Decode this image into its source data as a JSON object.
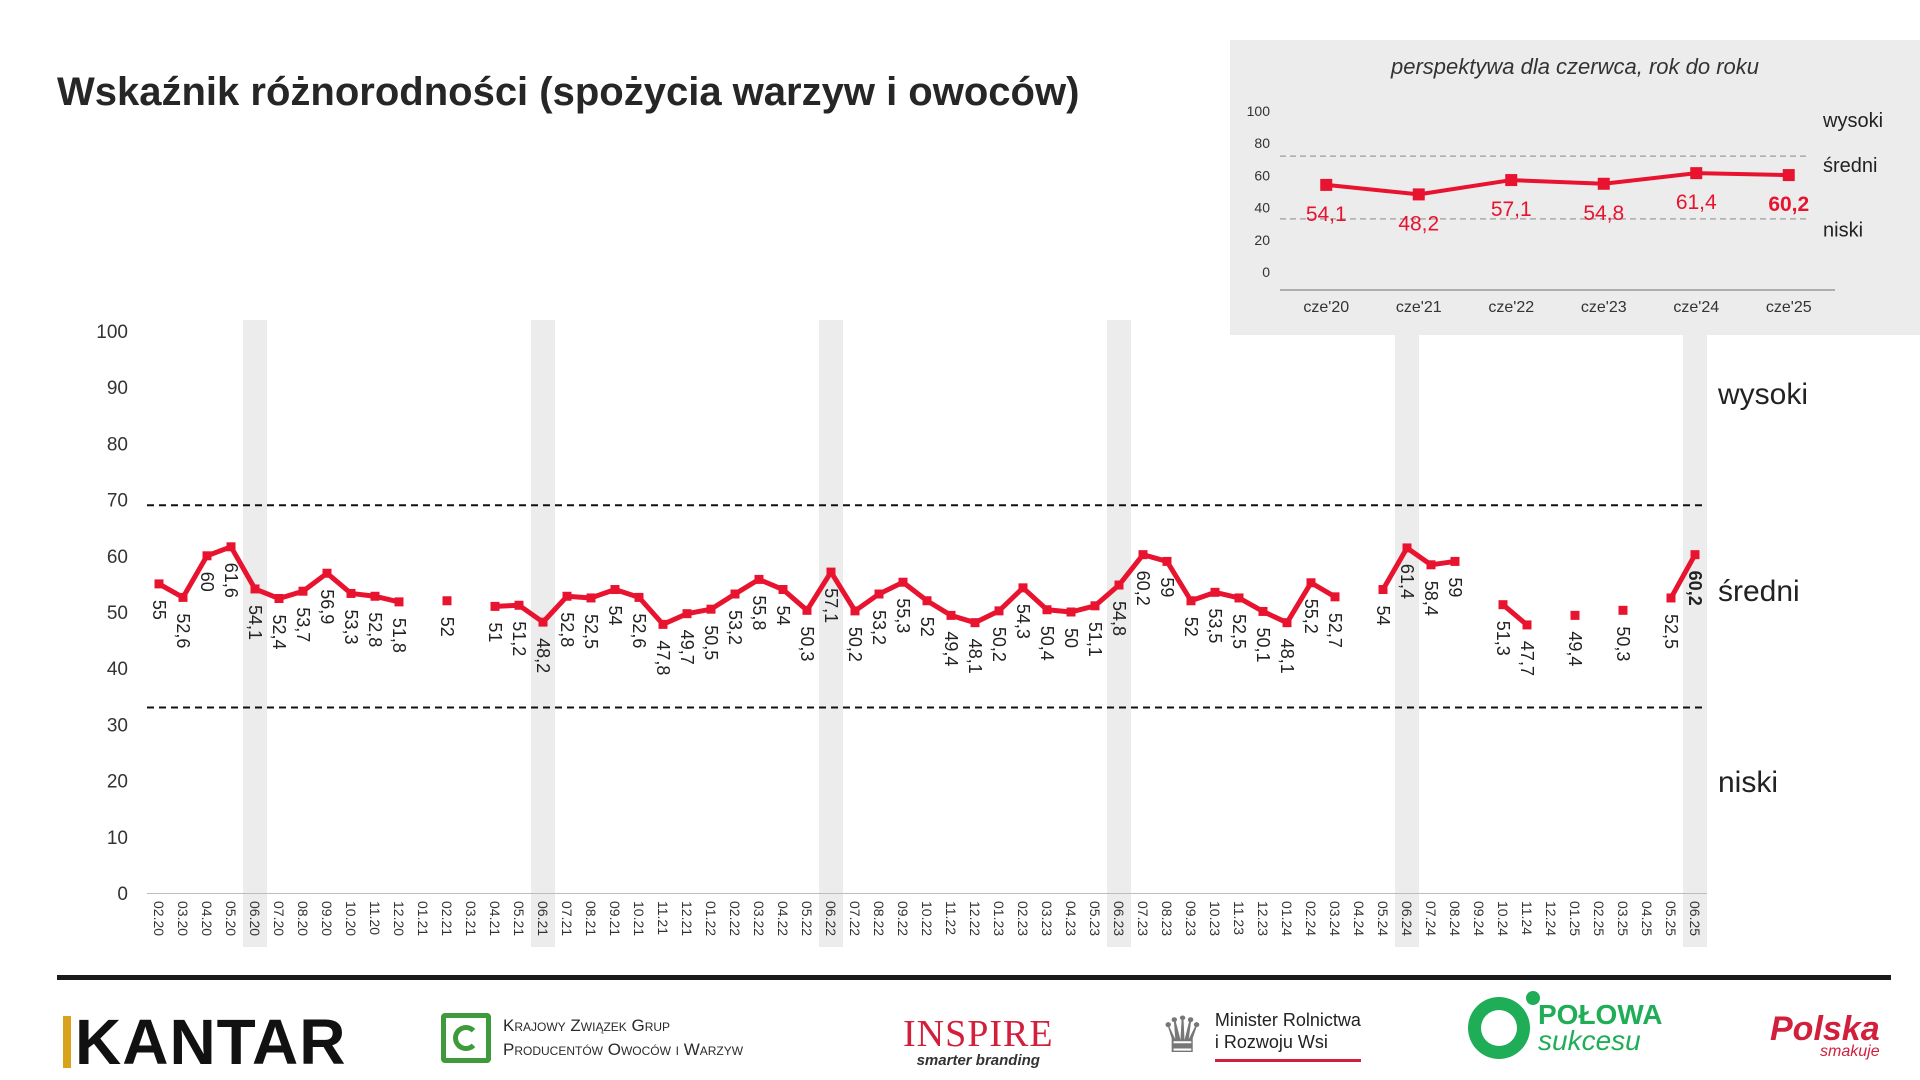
{
  "title": "Wskaźnik różnorodności (spożycia warzyw i owoców)",
  "chart_data": [
    {
      "type": "line",
      "title": "Wskaźnik różnorodności (spożycia warzyw i owoców)",
      "ylim": [
        0,
        100
      ],
      "yticks": [
        0,
        10,
        20,
        30,
        40,
        50,
        60,
        70,
        80,
        90,
        100
      ],
      "categories": [
        "02.20",
        "03.20",
        "04.20",
        "05.20",
        "06.20",
        "07.20",
        "08.20",
        "09.20",
        "10.20",
        "11.20",
        "12.20",
        "01.21",
        "02.21",
        "03.21",
        "04.21",
        "05.21",
        "06.21",
        "07.21",
        "08.21",
        "09.21",
        "10.21",
        "11.21",
        "12.21",
        "01.22",
        "02.22",
        "03.22",
        "04.22",
        "05.22",
        "06.22",
        "07.22",
        "08.22",
        "09.22",
        "10.22",
        "11.22",
        "12.22",
        "01.23",
        "02.23",
        "03.23",
        "04.23",
        "05.23",
        "06.23",
        "07.23",
        "08.23",
        "09.23",
        "10.23",
        "11.23",
        "12.23",
        "01.24",
        "02.24",
        "03.24",
        "04.24",
        "05.24",
        "06.24",
        "07.24",
        "08.24",
        "09.24",
        "10.24",
        "11.24",
        "12.24",
        "01.25",
        "02.25",
        "03.25",
        "04.25",
        "05.25",
        "06.25"
      ],
      "series": [
        {
          "values": [
            55,
            52.6,
            60,
            61.6,
            54.1,
            52.4,
            53.7,
            56.9,
            53.3,
            52.8,
            51.8,
            null,
            52,
            null,
            51,
            51.2,
            48.2,
            52.8,
            52.5,
            54,
            52.6,
            47.8,
            49.7,
            50.5,
            53.2,
            55.8,
            54,
            50.3,
            57.1,
            50.2,
            53.2,
            55.3,
            52,
            49.4,
            48.1,
            50.2,
            54.3,
            50.4,
            50,
            51.1,
            54.8,
            60.2,
            59,
            52,
            53.5,
            52.5,
            50.1,
            48.1,
            55.2,
            52.7,
            null,
            54,
            61.4,
            58.4,
            59,
            null,
            51.3,
            47.7,
            null,
            49.4,
            null,
            50.3,
            null,
            52.5,
            60.2
          ],
          "labels": [
            "55",
            "52,6",
            "60",
            "61,6",
            "54,1",
            "52,4",
            "53,7",
            "56,9",
            "53,3",
            "52,8",
            "51,8",
            "",
            "52",
            "",
            "51",
            "51,2",
            "48,2",
            "52,8",
            "52,5",
            "54",
            "52,6",
            "47,8",
            "49,7",
            "50,5",
            "53,2",
            "55,8",
            "54",
            "50,3",
            "57,1",
            "50,2",
            "53,2",
            "55,3",
            "52",
            "49,4",
            "48,1",
            "50,2",
            "54,3",
            "50,4",
            "50",
            "51,1",
            "54,8",
            "60,2",
            "59",
            "52",
            "53,5",
            "52,5",
            "50,1",
            "48,1",
            "55,2",
            "52,7",
            "",
            "54",
            "61,4",
            "58,4",
            "59",
            "",
            "51,3",
            "47,7",
            "",
            "49,4",
            "",
            "50,3",
            "",
            "52,5",
            "60,2"
          ],
          "color": "#e8132f"
        }
      ],
      "highlight_categories": [
        "06.20",
        "06.21",
        "06.22",
        "06.23",
        "06.24",
        "06.25"
      ],
      "reference_lines": [
        69,
        33
      ],
      "bands": [
        "wysoki",
        "średni",
        "niski"
      ],
      "grid": false
    },
    {
      "type": "line",
      "title": "perspektywa dla czerwca, rok do roku",
      "ylim": [
        0,
        100
      ],
      "yticks": [
        0,
        20,
        40,
        60,
        80,
        100
      ],
      "categories": [
        "cze'20",
        "cze'21",
        "cze'22",
        "cze'23",
        "cze'24",
        "cze'25"
      ],
      "series": [
        {
          "values": [
            54.1,
            48.2,
            57.1,
            54.8,
            61.4,
            60.2
          ],
          "labels": [
            "54,1",
            "48,2",
            "57,1",
            "54,8",
            "61,4",
            "60,2"
          ],
          "color": "#e8132f"
        }
      ],
      "reference_lines": [
        72,
        33
      ],
      "bands": [
        "wysoki",
        "średni",
        "niski"
      ],
      "grid": false
    }
  ],
  "logos": {
    "kantar": "KANTAR",
    "kzgp_line1": "Krajowy Związek Grup",
    "kzgp_line2": "Producentów Owoców i Warzyw",
    "inspire": "INSPIRE",
    "inspire_tag": "smarter branding",
    "minister_line1": "Minister Rolnictwa",
    "minister_line2": "i Rozwoju Wsi",
    "polowa_line1": "POŁOWA",
    "polowa_line2": "sukcesu",
    "polska_line1": "Polska",
    "polska_line2": "smakuje"
  },
  "colors": {
    "accent": "#e8132f",
    "highlight_band": "#ececec",
    "inset_bg": "#ececec"
  }
}
